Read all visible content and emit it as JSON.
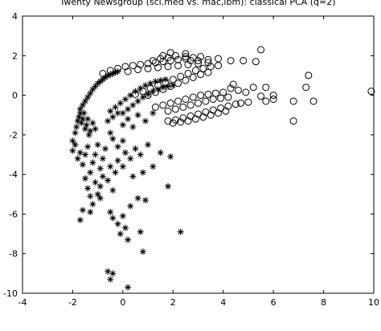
{
  "chart_data": {
    "type": "scatter",
    "title": "Twenty Newsgroup (sci.med vs. mac,ibm): classical PCA (q=2)",
    "xlabel": "",
    "ylabel": "",
    "xlim": [
      -4,
      10
    ],
    "ylim": [
      -10,
      4
    ],
    "xticks": [
      -4,
      -2,
      0,
      2,
      4,
      6,
      8,
      10
    ],
    "yticks": [
      -10,
      -8,
      -6,
      -4,
      -2,
      0,
      2,
      4
    ],
    "grid": false,
    "legend": "none",
    "series": [
      {
        "marker": "asterisk",
        "color": "#000000",
        "points": [
          [
            -1.7,
            -0.7
          ],
          [
            -1.6,
            -0.5
          ],
          [
            -1.5,
            -0.3
          ],
          [
            -1.4,
            -0.1
          ],
          [
            -1.3,
            0.1
          ],
          [
            -1.2,
            0.3
          ],
          [
            -1.1,
            0.45
          ],
          [
            -1.0,
            0.6
          ],
          [
            -0.9,
            0.7
          ],
          [
            -0.8,
            0.8
          ],
          [
            -0.7,
            0.9
          ],
          [
            -0.6,
            1.0
          ],
          [
            -0.5,
            1.05
          ],
          [
            -0.4,
            1.1
          ],
          [
            -0.3,
            1.15
          ],
          [
            -0.2,
            1.2
          ],
          [
            -1.9,
            -1.9
          ],
          [
            -1.85,
            -1.6
          ],
          [
            -1.8,
            -1.3
          ],
          [
            -1.75,
            -1.1
          ],
          [
            -1.7,
            -0.9
          ],
          [
            -1.65,
            -1.4
          ],
          [
            -1.6,
            -1.2
          ],
          [
            -1.55,
            -0.9
          ],
          [
            -1.5,
            -1.7
          ],
          [
            -1.45,
            -1.5
          ],
          [
            -1.4,
            -1.2
          ],
          [
            -1.35,
            -2.0
          ],
          [
            -1.3,
            -1.8
          ],
          [
            -1.2,
            -1.4
          ],
          [
            -1.1,
            -1.7
          ],
          [
            -2.0,
            -2.3
          ],
          [
            -2.0,
            -2.8
          ],
          [
            -1.9,
            -2.5
          ],
          [
            -1.8,
            -3.2
          ],
          [
            -1.7,
            -2.9
          ],
          [
            -1.6,
            -3.5
          ],
          [
            -1.5,
            -3.0
          ],
          [
            -1.4,
            -2.6
          ],
          [
            -1.3,
            -3.9
          ],
          [
            -1.2,
            -3.4
          ],
          [
            -1.1,
            -3.0
          ],
          [
            -1.0,
            -2.5
          ],
          [
            -0.9,
            -3.7
          ],
          [
            -0.8,
            -3.2
          ],
          [
            -0.7,
            -2.7
          ],
          [
            -1.5,
            -4.2
          ],
          [
            -1.4,
            -4.7
          ],
          [
            -1.3,
            -5.1
          ],
          [
            -1.2,
            -5.5
          ],
          [
            -1.1,
            -4.4
          ],
          [
            -1.0,
            -5.0
          ],
          [
            -0.9,
            -4.6
          ],
          [
            -0.8,
            -4.1
          ],
          [
            -0.6,
            -4.3
          ],
          [
            -0.5,
            -3.6
          ],
          [
            -0.4,
            -4.8
          ],
          [
            -0.3,
            -3.9
          ],
          [
            -0.2,
            -3.3
          ],
          [
            -1.7,
            -6.3
          ],
          [
            -1.6,
            -5.8
          ],
          [
            -1.3,
            -5.9
          ],
          [
            -0.9,
            -5.2
          ],
          [
            -0.5,
            -5.9
          ],
          [
            -0.4,
            -6.2
          ],
          [
            -0.2,
            -6.5
          ],
          [
            0.0,
            -6.1
          ],
          [
            0.1,
            -6.7
          ],
          [
            0.2,
            -7.3
          ],
          [
            -0.1,
            -7.0
          ],
          [
            0.3,
            -5.6
          ],
          [
            0.6,
            -5.2
          ],
          [
            0.9,
            -5.3
          ],
          [
            -0.6,
            -8.9
          ],
          [
            -0.4,
            -9.0
          ],
          [
            -0.5,
            -9.3
          ],
          [
            0.2,
            -9.7
          ],
          [
            0.8,
            -7.9
          ],
          [
            1.8,
            -4.6
          ],
          [
            2.3,
            -6.9
          ],
          [
            0.7,
            -6.9
          ],
          [
            -0.5,
            -1.9
          ],
          [
            -0.4,
            -2.2
          ],
          [
            -0.2,
            -2.6
          ],
          [
            0.0,
            -2.3
          ],
          [
            0.1,
            -2.9
          ],
          [
            0.3,
            -3.2
          ],
          [
            0.5,
            -2.7
          ],
          [
            0.7,
            -3.0
          ],
          [
            1.0,
            -2.5
          ],
          [
            1.2,
            -3.6
          ],
          [
            1.5,
            -2.9
          ],
          [
            0.8,
            -3.9
          ],
          [
            0.4,
            -4.1
          ],
          [
            0.0,
            -3.6
          ],
          [
            1.9,
            -3.1
          ],
          [
            -0.5,
            -0.8
          ],
          [
            -0.3,
            -0.6
          ],
          [
            -0.1,
            -0.4
          ],
          [
            0.1,
            -0.2
          ],
          [
            0.3,
            0.0
          ],
          [
            0.5,
            0.2
          ],
          [
            0.7,
            0.35
          ],
          [
            0.9,
            0.5
          ],
          [
            1.1,
            0.6
          ],
          [
            1.3,
            0.7
          ],
          [
            1.5,
            0.75
          ],
          [
            1.7,
            0.8
          ],
          [
            0.0,
            -0.9
          ],
          [
            0.2,
            -0.7
          ],
          [
            0.4,
            -0.5
          ],
          [
            0.6,
            -0.3
          ],
          [
            0.8,
            -0.1
          ],
          [
            1.0,
            0.05
          ],
          [
            1.2,
            0.2
          ],
          [
            1.4,
            0.3
          ],
          [
            1.6,
            0.4
          ],
          [
            1.8,
            0.45
          ],
          [
            2.0,
            0.5
          ],
          [
            -0.6,
            -1.3
          ],
          [
            -0.4,
            -1.1
          ],
          [
            -0.2,
            -0.9
          ],
          [
            0.0,
            -1.5
          ],
          [
            0.2,
            -1.2
          ],
          [
            0.4,
            -1.6
          ],
          [
            0.6,
            -1.0
          ],
          [
            0.9,
            -1.3
          ],
          [
            1.2,
            -0.9
          ]
        ]
      },
      {
        "marker": "circle",
        "color": "#000000",
        "points": [
          [
            -0.8,
            1.1
          ],
          [
            -0.5,
            1.25
          ],
          [
            -0.2,
            1.35
          ],
          [
            0.1,
            1.45
          ],
          [
            0.4,
            1.5
          ],
          [
            0.7,
            1.55
          ],
          [
            1.0,
            1.6
          ],
          [
            1.3,
            1.65
          ],
          [
            1.6,
            1.7
          ],
          [
            1.9,
            1.75
          ],
          [
            2.2,
            1.8
          ],
          [
            2.5,
            1.85
          ],
          [
            2.8,
            1.9
          ],
          [
            3.1,
            1.95
          ],
          [
            0.2,
            1.2
          ],
          [
            0.6,
            1.3
          ],
          [
            1.0,
            1.35
          ],
          [
            1.4,
            1.4
          ],
          [
            1.8,
            1.45
          ],
          [
            2.2,
            1.5
          ],
          [
            2.6,
            1.55
          ],
          [
            3.0,
            1.6
          ],
          [
            3.4,
            1.65
          ],
          [
            1.2,
            1.75
          ],
          [
            1.5,
            1.85
          ],
          [
            1.8,
            1.9
          ],
          [
            2.1,
            2.0
          ],
          [
            2.5,
            1.95
          ],
          [
            2.7,
            1.75
          ],
          [
            3.0,
            1.75
          ],
          [
            3.4,
            1.8
          ],
          [
            3.8,
            1.85
          ],
          [
            4.3,
            1.75
          ],
          [
            4.8,
            1.75
          ],
          [
            5.5,
            2.3
          ],
          [
            5.3,
            1.7
          ],
          [
            2.5,
            2.1
          ],
          [
            1.9,
            2.15
          ],
          [
            1.6,
            2.0
          ],
          [
            0.5,
            0.05
          ],
          [
            0.8,
            0.2
          ],
          [
            1.1,
            0.35
          ],
          [
            1.4,
            0.5
          ],
          [
            1.7,
            0.65
          ],
          [
            2.0,
            0.8
          ],
          [
            2.3,
            0.95
          ],
          [
            2.6,
            1.1
          ],
          [
            2.9,
            1.25
          ],
          [
            3.2,
            1.35
          ],
          [
            3.5,
            1.45
          ],
          [
            3.8,
            1.5
          ],
          [
            1.0,
            0.0
          ],
          [
            1.3,
            0.15
          ],
          [
            1.6,
            0.3
          ],
          [
            1.9,
            0.45
          ],
          [
            2.2,
            0.6
          ],
          [
            2.5,
            0.75
          ],
          [
            2.8,
            0.9
          ],
          [
            3.1,
            1.05
          ],
          [
            3.4,
            1.15
          ],
          [
            1.3,
            -0.6
          ],
          [
            1.6,
            -0.5
          ],
          [
            1.9,
            -0.4
          ],
          [
            2.2,
            -0.3
          ],
          [
            2.5,
            -0.2
          ],
          [
            2.8,
            -0.1
          ],
          [
            3.1,
            0.0
          ],
          [
            3.4,
            0.05
          ],
          [
            3.7,
            0.1
          ],
          [
            4.0,
            0.15
          ],
          [
            1.8,
            -0.8
          ],
          [
            2.1,
            -0.7
          ],
          [
            2.4,
            -0.6
          ],
          [
            2.7,
            -0.5
          ],
          [
            3.0,
            -0.4
          ],
          [
            3.3,
            -0.3
          ],
          [
            3.6,
            -0.2
          ],
          [
            3.9,
            -0.15
          ],
          [
            4.2,
            -0.1
          ],
          [
            1.8,
            -1.3
          ],
          [
            2.1,
            -1.25
          ],
          [
            2.4,
            -1.15
          ],
          [
            2.7,
            -1.05
          ],
          [
            3.0,
            -0.95
          ],
          [
            3.3,
            -0.85
          ],
          [
            3.6,
            -0.75
          ],
          [
            3.9,
            -0.65
          ],
          [
            4.2,
            -0.55
          ],
          [
            4.5,
            -0.45
          ],
          [
            2.0,
            -1.4
          ],
          [
            2.3,
            -1.35
          ],
          [
            2.6,
            -1.3
          ],
          [
            2.9,
            -1.2
          ],
          [
            3.2,
            -1.1
          ],
          [
            3.5,
            -1.0
          ],
          [
            3.8,
            -0.9
          ],
          [
            4.1,
            -0.8
          ],
          [
            4.3,
            0.35
          ],
          [
            4.6,
            0.25
          ],
          [
            4.9,
            0.15
          ],
          [
            5.2,
            0.4
          ],
          [
            5.5,
            -0.05
          ],
          [
            5.7,
            -0.3
          ],
          [
            4.7,
            -0.4
          ],
          [
            5.0,
            -0.35
          ],
          [
            4.4,
            0.55
          ],
          [
            6.0,
            0.0
          ],
          [
            6.8,
            -0.3
          ],
          [
            6.8,
            -1.3
          ],
          [
            7.4,
            1.0
          ],
          [
            7.6,
            -0.3
          ],
          [
            7.3,
            0.4
          ],
          [
            9.9,
            0.2
          ],
          [
            6.0,
            -0.2
          ],
          [
            5.7,
            0.4
          ]
        ]
      }
    ]
  }
}
